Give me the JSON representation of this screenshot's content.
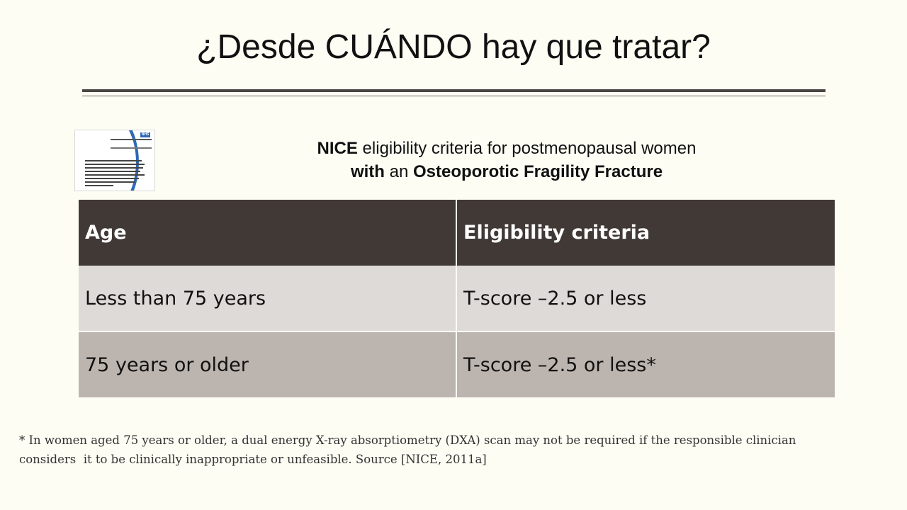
{
  "slide": {
    "title": "¿Desde CUÁNDO hay que tratar?"
  },
  "cover_image": {
    "icon": "guidance-document-cover",
    "brand_color": "#2f68b4",
    "badge": "NHS"
  },
  "subtitle": {
    "line1_bold": "NICE",
    "line1_rest": " eligibility criteria for postmenopausal women",
    "line2_bold1": "with",
    "line2_mid": " an ",
    "line2_bold2": "Osteoporotic Fragility Fracture"
  },
  "table": {
    "headers": [
      "Age",
      "Eligibility criteria"
    ],
    "rows": [
      [
        "Less than 75 years",
        "T-score –2.5 or less"
      ],
      [
        "75 years or older",
        "T-score –2.5 or less*"
      ]
    ],
    "header_color": "#413936",
    "row_colors": [
      "#dedad7",
      "#bcb4ae"
    ]
  },
  "footnote": {
    "line1": "* In women aged 75 years or older, a dual energy X-ray absorptiometry (DXA) scan may not be required if the responsible clinician",
    "line2": "considers  it to be clinically inappropriate or unfeasible. Source [NICE, 2011a]"
  }
}
